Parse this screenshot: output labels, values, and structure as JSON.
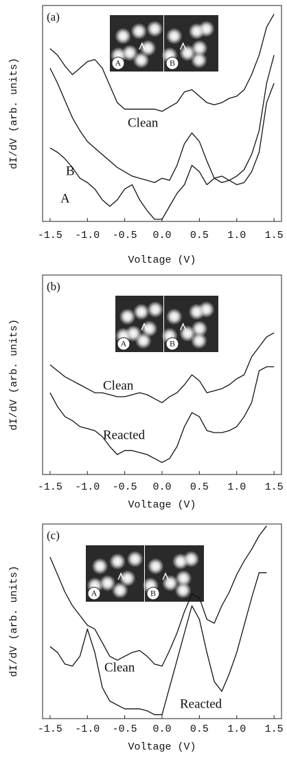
{
  "chart_data": [
    {
      "type": "line",
      "panel_label": "(a)",
      "ylabel": "dI/dV (arb. units)",
      "xlabel": "Voltage (V)",
      "inset_labels": [
        "A",
        "B"
      ],
      "xlim": [
        -1.6,
        1.6
      ],
      "ylim": [
        0,
        100
      ],
      "xticks": [
        -1.5,
        {
          "value": -1,
          "label": "-1.0"
        },
        -0.5,
        {
          "value": 0,
          "label": "0.0"
        },
        0.5,
        {
          "value": 1,
          "label": "1.0"
        },
        1.5
      ],
      "x": [
        -1.5,
        -1.4,
        -1.3,
        -1.2,
        -1.1,
        -1.0,
        -0.9,
        -0.8,
        -0.7,
        -0.6,
        -0.5,
        -0.4,
        -0.3,
        -0.2,
        -0.1,
        0.0,
        0.1,
        0.2,
        0.3,
        0.4,
        0.5,
        0.6,
        0.7,
        0.8,
        0.9,
        1.0,
        1.1,
        1.2,
        1.3,
        1.4,
        1.5
      ],
      "series": [
        {
          "name": "Clean",
          "color": "#111111",
          "values": [
            80,
            77,
            72,
            68,
            71,
            74,
            75,
            71,
            63,
            55,
            52,
            52,
            52,
            52,
            52,
            51,
            53,
            55,
            60,
            61,
            58,
            55,
            54,
            55,
            57,
            58,
            61,
            68,
            77,
            90,
            96
          ]
        },
        {
          "name": "B",
          "color": "#111111",
          "values": [
            71,
            64,
            56,
            48,
            42,
            37,
            34,
            31,
            28,
            25,
            23,
            21,
            20,
            19,
            18,
            20,
            19,
            26,
            36,
            41,
            37,
            28,
            20,
            18,
            19,
            21,
            24,
            31,
            42,
            64,
            77
          ]
        },
        {
          "name": "A",
          "color": "#111111",
          "values": [
            34,
            32,
            29,
            25,
            20,
            18,
            15,
            10,
            7,
            10,
            15,
            17,
            10,
            5,
            1,
            1,
            7,
            13,
            17,
            26,
            23,
            17,
            20,
            21,
            19,
            17,
            18,
            23,
            32,
            55,
            64
          ]
        }
      ]
    },
    {
      "type": "line",
      "panel_label": "(b)",
      "ylabel": "dI/dV (arb. units)",
      "xlabel": "Voltage (V)",
      "inset_labels": [
        "A",
        "B"
      ],
      "xlim": [
        -1.6,
        1.6
      ],
      "ylim": [
        0,
        100
      ],
      "xticks": [
        -1.5,
        {
          "value": -1,
          "label": "-1.0"
        },
        -0.5,
        {
          "value": 0,
          "label": "0.0"
        },
        0.5,
        {
          "value": 1,
          "label": "1.0"
        },
        1.5
      ],
      "x": [
        -1.5,
        -1.4,
        -1.3,
        -1.2,
        -1.1,
        -1.0,
        -0.9,
        -0.8,
        -0.7,
        -0.6,
        -0.5,
        -0.4,
        -0.3,
        -0.2,
        -0.1,
        0.0,
        0.1,
        0.2,
        0.3,
        0.4,
        0.5,
        0.6,
        0.7,
        0.8,
        0.9,
        1.0,
        1.1,
        1.2,
        1.3,
        1.4,
        1.5
      ],
      "series": [
        {
          "name": "Clean",
          "color": "#111111",
          "values": [
            55,
            52,
            49,
            47,
            45,
            43,
            41,
            41,
            40,
            39,
            39,
            40,
            41,
            40,
            38,
            36,
            39,
            41,
            45,
            50,
            47,
            41,
            42,
            43,
            45,
            48,
            50,
            59,
            64,
            69,
            71
          ]
        },
        {
          "name": "Reacted",
          "color": "#111111",
          "values": [
            41,
            34,
            29,
            27,
            24,
            23,
            22,
            19,
            14,
            10,
            12,
            12,
            11,
            10,
            8,
            6,
            8,
            14,
            24,
            31,
            29,
            22,
            21,
            21,
            22,
            24,
            29,
            36,
            52,
            54,
            54
          ]
        }
      ]
    },
    {
      "type": "line",
      "panel_label": "(c)",
      "ylabel": "dI/dV (arb. units)",
      "xlabel": "Voltage (V)",
      "inset_labels": [
        "A",
        "B"
      ],
      "xlim": [
        -1.6,
        1.6
      ],
      "ylim": [
        0,
        100
      ],
      "xticks": [
        -1.5,
        {
          "value": -1,
          "label": "-1.0"
        },
        -0.5,
        {
          "value": 0,
          "label": "0.0"
        },
        0.5,
        {
          "value": 1,
          "label": "1.0"
        },
        1.5
      ],
      "x": [
        -1.5,
        -1.4,
        -1.3,
        -1.2,
        -1.1,
        -1.0,
        -0.9,
        -0.8,
        -0.7,
        -0.6,
        -0.5,
        -0.4,
        -0.3,
        -0.2,
        -0.1,
        0.0,
        0.1,
        0.2,
        0.3,
        0.4,
        0.5,
        0.6,
        0.7,
        0.8,
        0.9,
        1.0,
        1.1,
        1.2,
        1.3,
        1.4,
        1.5
      ],
      "series": [
        {
          "name": "Clean",
          "color": "#111111",
          "values": [
            83,
            74,
            65,
            58,
            53,
            48,
            46,
            39,
            32,
            30,
            32,
            34,
            35,
            32,
            28,
            27,
            35,
            44,
            55,
            64,
            62,
            51,
            49,
            58,
            65,
            74,
            81,
            87,
            94,
            99,
            null
          ]
        },
        {
          "name": "Reacted",
          "color": "#111111",
          "values": [
            37,
            34,
            28,
            27,
            32,
            46,
            34,
            16,
            9,
            7,
            5,
            5,
            5,
            4,
            2,
            2,
            16,
            30,
            44,
            58,
            51,
            34,
            19,
            14,
            23,
            34,
            48,
            62,
            75,
            75,
            null
          ]
        }
      ]
    }
  ]
}
